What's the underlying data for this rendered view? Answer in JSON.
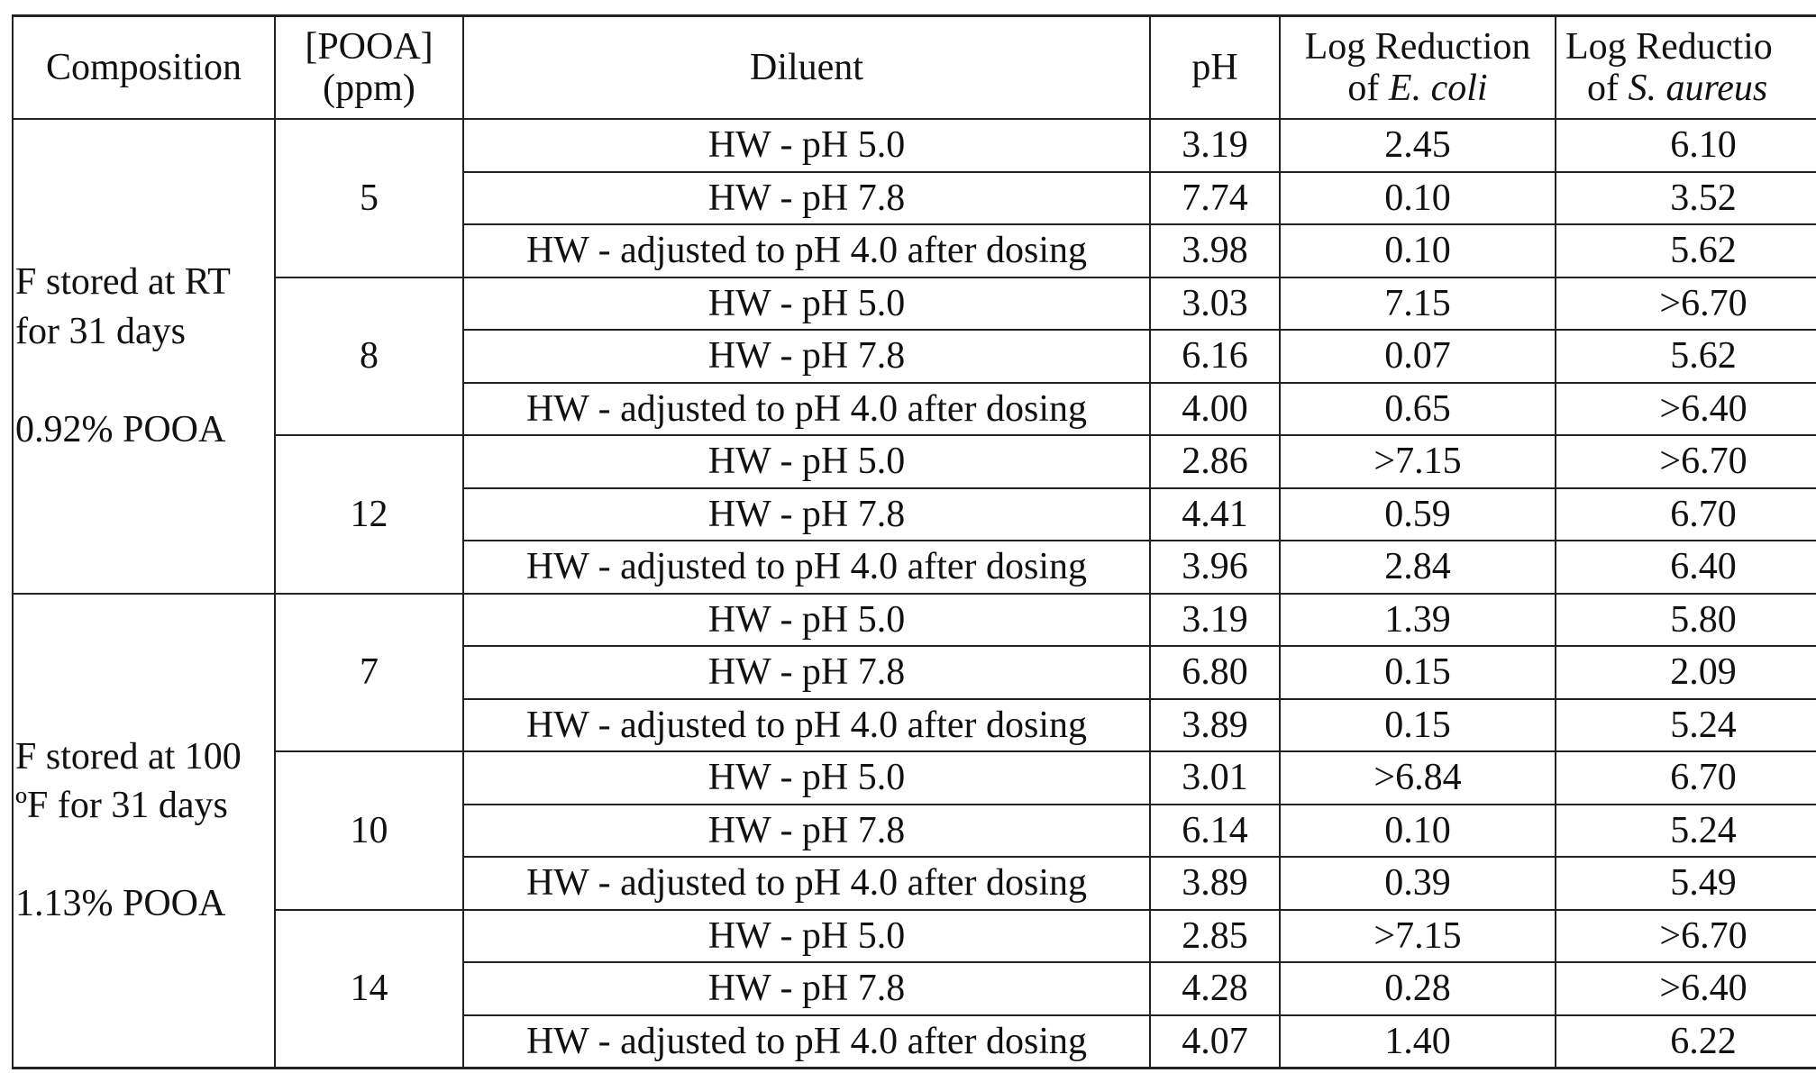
{
  "headers": {
    "composition": "Composition",
    "pooa_line1": "[POOA]",
    "pooa_line2": "(ppm)",
    "diluent": "Diluent",
    "ph": "pH",
    "ecoli_line1": "Log Reduction",
    "ecoli_of": "of ",
    "ecoli_name": "E. coli",
    "saureus_line1": "Log Reductio",
    "saureus_of": "of ",
    "saureus_name": "S. aureus"
  },
  "groups": [
    {
      "composition": "F stored at RT\nfor 31 days\n\n0.92% POOA",
      "subgroups": [
        {
          "pooa": "5",
          "rows": [
            {
              "diluent": "HW - pH 5.0",
              "ph": "3.19",
              "ecoli": "2.45",
              "saureus": "6.10"
            },
            {
              "diluent": "HW - pH 7.8",
              "ph": "7.74",
              "ecoli": "0.10",
              "saureus": "3.52"
            },
            {
              "diluent": "HW - adjusted to pH 4.0 after dosing",
              "ph": "3.98",
              "ecoli": "0.10",
              "saureus": "5.62"
            }
          ]
        },
        {
          "pooa": "8",
          "rows": [
            {
              "diluent": "HW - pH 5.0",
              "ph": "3.03",
              "ecoli": "7.15",
              "saureus": ">6.70"
            },
            {
              "diluent": "HW - pH 7.8",
              "ph": "6.16",
              "ecoli": "0.07",
              "saureus": "5.62"
            },
            {
              "diluent": "HW - adjusted to pH 4.0 after dosing",
              "ph": "4.00",
              "ecoli": "0.65",
              "saureus": ">6.40"
            }
          ]
        },
        {
          "pooa": "12",
          "rows": [
            {
              "diluent": "HW - pH 5.0",
              "ph": "2.86",
              "ecoli": ">7.15",
              "saureus": ">6.70"
            },
            {
              "diluent": "HW - pH 7.8",
              "ph": "4.41",
              "ecoli": "0.59",
              "saureus": "6.70"
            },
            {
              "diluent": "HW - adjusted to pH 4.0 after dosing",
              "ph": "3.96",
              "ecoli": "2.84",
              "saureus": "6.40"
            }
          ]
        }
      ]
    },
    {
      "composition": "F stored at 100\nºF for 31 days\n\n1.13% POOA",
      "subgroups": [
        {
          "pooa": "7",
          "rows": [
            {
              "diluent": "HW - pH 5.0",
              "ph": "3.19",
              "ecoli": "1.39",
              "saureus": "5.80"
            },
            {
              "diluent": "HW - pH 7.8",
              "ph": "6.80",
              "ecoli": "0.15",
              "saureus": "2.09"
            },
            {
              "diluent": "HW - adjusted to pH 4.0 after dosing",
              "ph": "3.89",
              "ecoli": "0.15",
              "saureus": "5.24"
            }
          ]
        },
        {
          "pooa": "10",
          "rows": [
            {
              "diluent": "HW - pH 5.0",
              "ph": "3.01",
              "ecoli": ">6.84",
              "saureus": "6.70"
            },
            {
              "diluent": "HW - pH 7.8",
              "ph": "6.14",
              "ecoli": "0.10",
              "saureus": "5.24"
            },
            {
              "diluent": "HW - adjusted to pH 4.0 after dosing",
              "ph": "3.89",
              "ecoli": "0.39",
              "saureus": "5.49"
            }
          ]
        },
        {
          "pooa": "14",
          "rows": [
            {
              "diluent": "HW - pH 5.0",
              "ph": "2.85",
              "ecoli": ">7.15",
              "saureus": ">6.70"
            },
            {
              "diluent": "HW - pH 7.8",
              "ph": "4.28",
              "ecoli": "0.28",
              "saureus": ">6.40"
            },
            {
              "diluent": "HW - adjusted to pH 4.0 after dosing",
              "ph": "4.07",
              "ecoli": "1.40",
              "saureus": "6.22"
            }
          ]
        }
      ]
    }
  ]
}
